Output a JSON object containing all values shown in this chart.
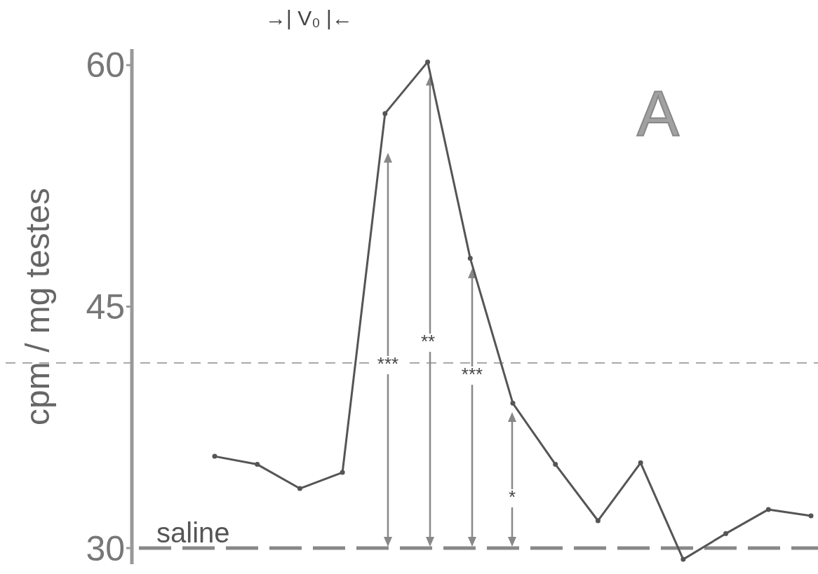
{
  "chart_data": {
    "type": "line",
    "ylabel": "cpm / mg testes",
    "categories": [
      null,
      null,
      null,
      null,
      null,
      null,
      null,
      null,
      null,
      null,
      null,
      null,
      null,
      null,
      null
    ],
    "series": [
      {
        "color": "#555555",
        "values": [
          35.7,
          35.2,
          33.7,
          34.7,
          57.0,
          60.2,
          48.0,
          39.0,
          35.2,
          31.7,
          35.3,
          29.3,
          30.9,
          32.4,
          32.0
        ]
      }
    ],
    "ylim": [
      29,
      61
    ],
    "yticks": [
      30,
      45,
      60
    ],
    "grid": false,
    "marker": "circle",
    "line_style": "solid",
    "tick_labels": "y",
    "ref_lines": [
      {
        "axis": "y",
        "value": 41.5,
        "color": "#777777",
        "line_style": "dashed"
      },
      {
        "axis": "y",
        "value": 30,
        "label": "saline",
        "color": "#888888",
        "line_style": "dashed"
      }
    ],
    "annotations": [
      "→| V₀ |←",
      "A",
      "***",
      "**",
      "***",
      "*"
    ]
  }
}
